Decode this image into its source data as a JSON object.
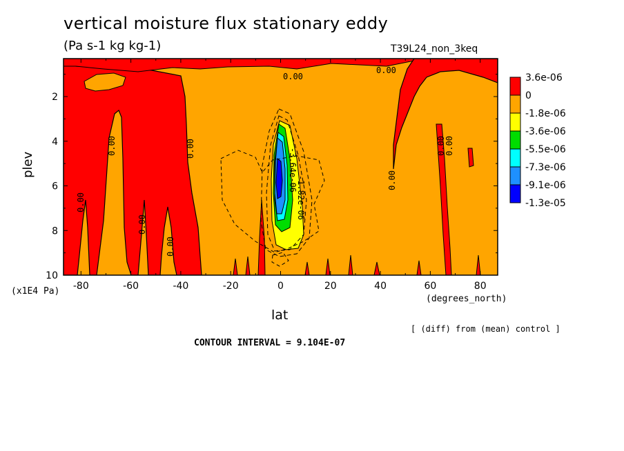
{
  "chart_data": {
    "type": "heatmap",
    "title": "vertical moisture flux stationary eddy",
    "units": "(Pa s-1 kg kg-1)",
    "run_label": "T39L24_non_3keq",
    "xlabel": "lat",
    "x_unit": "(degrees_north)",
    "ylabel": "plev",
    "y_unit": "(x1E4 Pa)",
    "xlim": [
      -87,
      87
    ],
    "ylim": [
      10,
      0.3
    ],
    "x_ticks": [
      "-80",
      "-60",
      "-40",
      "-20",
      "0",
      "20",
      "40",
      "60",
      "80"
    ],
    "x_tick_values": [
      -80,
      -60,
      -40,
      -20,
      0,
      20,
      40,
      60,
      80
    ],
    "y_ticks": [
      "2",
      "4",
      "6",
      "8",
      "10"
    ],
    "y_tick_values": [
      2,
      4,
      6,
      8,
      10
    ],
    "legend": {
      "labels": [
        "3.6e-06",
        "0",
        "-1.8e-06",
        "-3.6e-06",
        "-5.5e-06",
        "-7.3e-06",
        "-9.1e-06",
        "-1.3e-05"
      ],
      "colors": [
        "#ff0000",
        "#ffa500",
        "#ffff00",
        "#00dd00",
        "#00ffff",
        "#1e90ff",
        "#0000ff"
      ]
    },
    "contour_labels": [
      "0.00",
      "0.00",
      "0.00",
      "0.00",
      "0.00",
      "0.00",
      "0.00",
      "0.00",
      "0.00",
      "0.00",
      "-1.82e-06",
      "-3.64e-06"
    ],
    "contour_interval_text": "CONTOUR INTERVAL = 9.104E-07",
    "note_text": "[ (diff) from (mean) control ]",
    "colors": {
      "positive": "#ff0000",
      "background": "#ffa500"
    }
  }
}
